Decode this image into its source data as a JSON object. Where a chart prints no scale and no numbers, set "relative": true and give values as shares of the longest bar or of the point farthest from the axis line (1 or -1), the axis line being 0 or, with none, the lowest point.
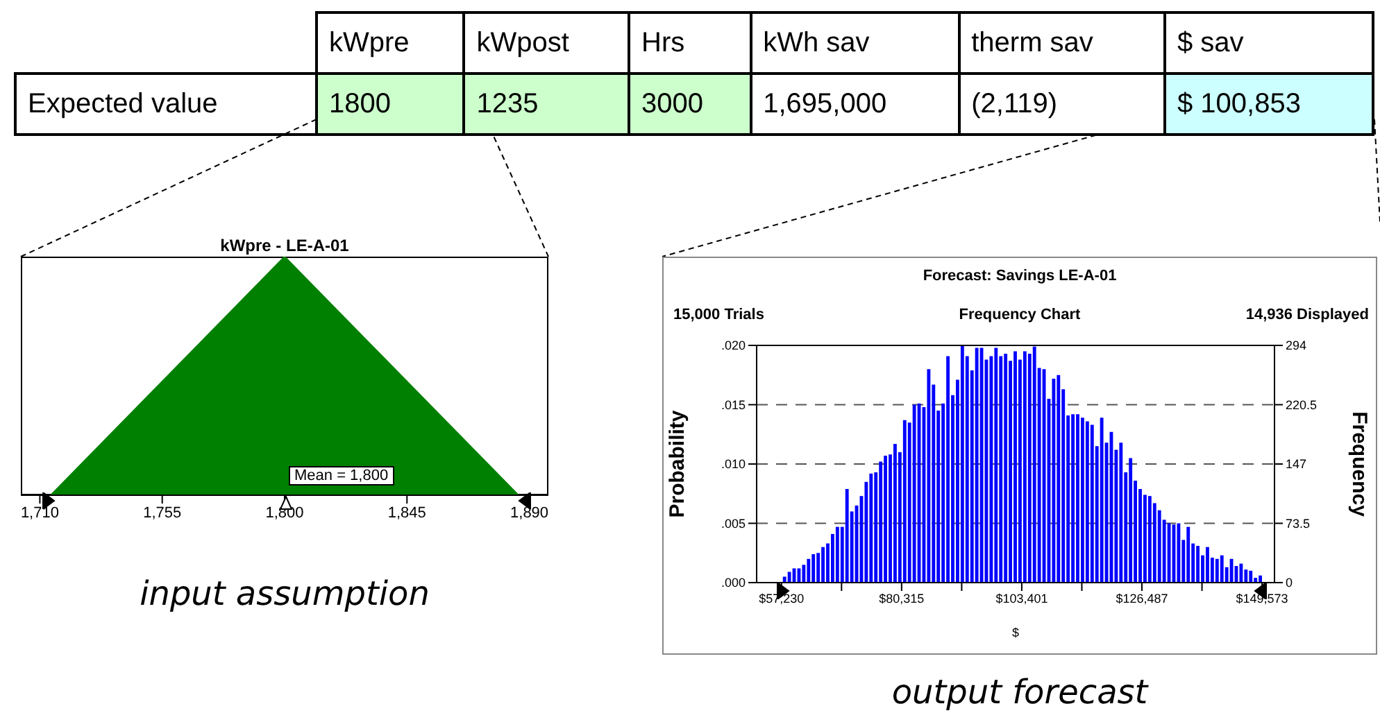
{
  "chart_data": [
    {
      "type": "other",
      "categories": [
        "kWpre",
        "kWpost",
        "Hrs",
        "kWh sav",
        "therm sav",
        "$ sav"
      ],
      "y_categories": [
        "Expected value"
      ],
      "cell_labels": [
        [
          "1800",
          "1235",
          "3000",
          "1,695,000",
          "(2,119)",
          "$ 100,853"
        ]
      ],
      "colors": [
        "#ccffcc",
        "#ccffcc",
        "#ccffcc",
        "#ffffff",
        "#ffffff",
        "#ccffff"
      ]
    },
    {
      "type": "area",
      "title": "kWpre - LE-A-01",
      "relative": true,
      "x": [
        1714,
        1800,
        1886
      ],
      "values": [
        0,
        1,
        0
      ],
      "color": "#008000",
      "xlim": [
        1703,
        1897
      ],
      "xticks": [
        {
          "value": 1710,
          "label": "1,710"
        },
        {
          "value": 1755,
          "label": "1,755"
        },
        {
          "value": 1800,
          "label": "1,800"
        },
        {
          "value": 1845,
          "label": "1,845"
        },
        {
          "value": 1890,
          "label": "1,890"
        }
      ],
      "annotations": [
        "Mean = 1,800",
        "input assumption"
      ]
    },
    {
      "type": "histogram",
      "title": "Forecast: Savings LE-A-01",
      "xlabel": "$",
      "ylabel": "Probability",
      "y2label": "Frequency",
      "color": "#0000ff",
      "bins": [
        57230,
        58153,
        59077,
        60000,
        60924,
        61847,
        62771,
        63694,
        64617,
        65541,
        66464,
        67388,
        68311,
        69235,
        70158,
        71081,
        72005,
        72928,
        73852,
        74775,
        75699,
        76622,
        77545,
        78469,
        79392,
        80316,
        81239,
        82163,
        83086,
        84009,
        84933,
        85856,
        86780,
        87703,
        88627,
        89550,
        90473,
        91397,
        92320,
        93244,
        94167,
        95091,
        96014,
        96937,
        97861,
        98784,
        99708,
        100631,
        101555,
        102478,
        103402,
        104325,
        105248,
        106172,
        107095,
        108019,
        108942,
        109866,
        110789,
        111712,
        112636,
        113559,
        114483,
        115406,
        116330,
        117253,
        118176,
        119100,
        120023,
        120947,
        121870,
        122794,
        123717,
        124640,
        125564,
        126487,
        127411,
        128334,
        129258,
        130181,
        131104,
        132028,
        132951,
        133875,
        134798,
        135722,
        136645,
        137568,
        138492,
        139415,
        140339,
        141262,
        142186,
        143109,
        144032,
        144956,
        145879,
        146803,
        147726,
        148650,
        149573
      ],
      "values": [
        0.0005,
        0.0009,
        0.0012,
        0.0012,
        0.0015,
        0.002,
        0.0024,
        0.0025,
        0.003,
        0.0033,
        0.0041,
        0.0047,
        0.0047,
        0.0079,
        0.006,
        0.0065,
        0.0073,
        0.0085,
        0.0092,
        0.0093,
        0.0102,
        0.0107,
        0.0108,
        0.0117,
        0.011,
        0.0137,
        0.0135,
        0.015,
        0.0151,
        0.0148,
        0.018,
        0.0167,
        0.0145,
        0.0151,
        0.0191,
        0.0158,
        0.0171,
        0.02,
        0.0191,
        0.0179,
        0.0198,
        0.0198,
        0.0188,
        0.0191,
        0.0198,
        0.0191,
        0.0193,
        0.0187,
        0.0195,
        0.0188,
        0.0195,
        0.0193,
        0.0199,
        0.0181,
        0.018,
        0.0155,
        0.0172,
        0.0175,
        0.0163,
        0.0141,
        0.0142,
        0.0142,
        0.0139,
        0.0136,
        0.0133,
        0.0115,
        0.0139,
        0.0118,
        0.0127,
        0.0112,
        0.0118,
        0.0093,
        0.0105,
        0.0086,
        0.0079,
        0.0074,
        0.0073,
        0.0067,
        0.0061,
        0.0053,
        0.005,
        0.0049,
        0.005,
        0.0036,
        0.0047,
        0.0033,
        0.0031,
        0.0023,
        0.003,
        0.0021,
        0.002,
        0.0023,
        0.0013,
        0.002,
        0.0014,
        0.0016,
        0.0011,
        0.001,
        0.0004,
        0.0006
      ],
      "xlim": [
        52460,
        151960
      ],
      "xticks": [
        {
          "value": 57230,
          "label": "$57,230"
        },
        {
          "value": 68773,
          "label": null
        },
        {
          "value": 80315,
          "label": "$80,315"
        },
        {
          "value": 91858,
          "label": null
        },
        {
          "value": 103401,
          "label": "$103,401"
        },
        {
          "value": 114944,
          "label": null
        },
        {
          "value": 126487,
          "label": "$126,487"
        },
        {
          "value": 138030,
          "label": null
        },
        {
          "value": 149573,
          "label": "$149,573"
        }
      ],
      "ylim": [
        0,
        0.02
      ],
      "yticks": [
        {
          "value": 0,
          "label": ".000"
        },
        {
          "value": 0.005,
          "label": ".005"
        },
        {
          "value": 0.01,
          "label": ".010"
        },
        {
          "value": 0.015,
          "label": ".015"
        },
        {
          "value": 0.02,
          "label": ".020"
        }
      ],
      "y2lim": [
        0,
        294
      ],
      "y2ticks": [
        0,
        73.5,
        147,
        220.5,
        294
      ],
      "grid": "y",
      "line_style": "dashed",
      "annotations": [
        "15,000 Trials",
        "Frequency Chart",
        "14,936 Displayed",
        "output forecast"
      ]
    }
  ]
}
